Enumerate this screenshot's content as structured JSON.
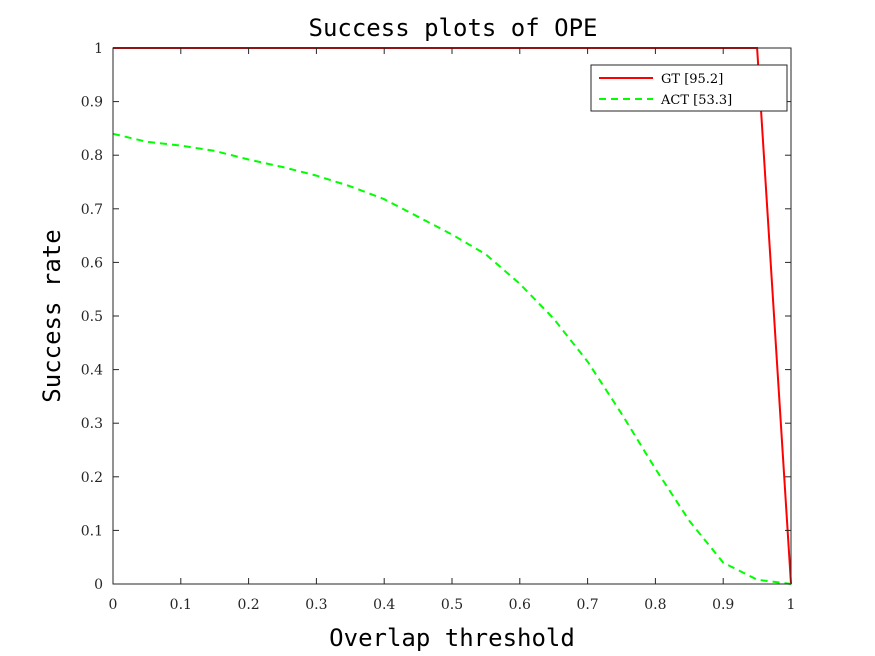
{
  "chart_data": {
    "type": "line",
    "title": "Success plots of OPE",
    "xlabel": "Overlap threshold",
    "ylabel": "Success rate",
    "xlim": [
      0,
      1
    ],
    "ylim": [
      0,
      1
    ],
    "xticks": [
      "0",
      "0.1",
      "0.2",
      "0.3",
      "0.4",
      "0.5",
      "0.6",
      "0.7",
      "0.8",
      "0.9",
      "1"
    ],
    "yticks": [
      "0",
      "0.1",
      "0.2",
      "0.3",
      "0.4",
      "0.5",
      "0.6",
      "0.7",
      "0.8",
      "0.9",
      "1"
    ],
    "grid": false,
    "legend_position": "top-right",
    "series": [
      {
        "name": "GT [95.2]",
        "color": "#ff0000",
        "style": "solid",
        "x": [
          0,
          0.1,
          0.2,
          0.3,
          0.4,
          0.5,
          0.6,
          0.7,
          0.8,
          0.9,
          0.95,
          1.0
        ],
        "y": [
          1,
          1,
          1,
          1,
          1,
          1,
          1,
          1,
          1,
          1,
          1,
          0
        ]
      },
      {
        "name": "ACT [53.3]",
        "color": "#00ff00",
        "style": "dashed",
        "x": [
          0,
          0.05,
          0.1,
          0.15,
          0.2,
          0.25,
          0.3,
          0.35,
          0.4,
          0.45,
          0.5,
          0.55,
          0.6,
          0.65,
          0.7,
          0.75,
          0.8,
          0.85,
          0.9,
          0.95,
          1.0
        ],
        "y": [
          0.84,
          0.825,
          0.818,
          0.808,
          0.792,
          0.778,
          0.762,
          0.742,
          0.718,
          0.685,
          0.652,
          0.615,
          0.56,
          0.495,
          0.415,
          0.318,
          0.215,
          0.118,
          0.04,
          0.008,
          0
        ]
      }
    ]
  }
}
